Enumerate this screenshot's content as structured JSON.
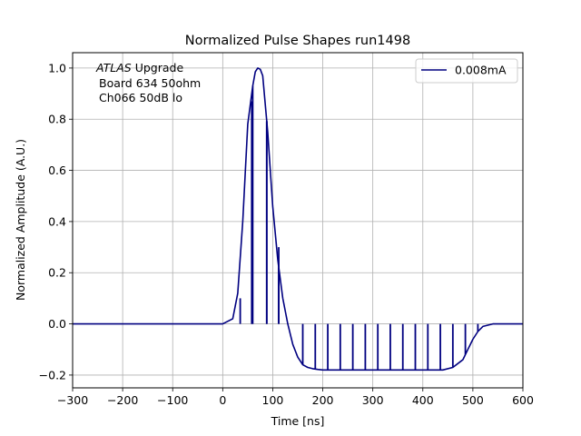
{
  "chart_data": {
    "type": "line",
    "title": "Normalized Pulse Shapes run1498",
    "xlabel": "Time [ns]",
    "ylabel": "Normalized Amplitude (A.U.)",
    "xlim": [
      -300,
      600
    ],
    "ylim": [
      -0.25,
      1.06
    ],
    "grid": true,
    "xticks": [
      -300,
      -200,
      -100,
      0,
      100,
      200,
      300,
      400,
      500,
      600
    ],
    "xtick_labels": [
      "−300",
      "−200",
      "−100",
      "0",
      "100",
      "200",
      "300",
      "400",
      "500",
      "600"
    ],
    "yticks": [
      -0.2,
      0.0,
      0.2,
      0.4,
      0.6,
      0.8,
      1.0
    ],
    "ytick_labels": [
      "−0.2",
      "0.0",
      "0.2",
      "0.4",
      "0.6",
      "0.8",
      "1.0"
    ],
    "annotation": {
      "italic": "ATLAS",
      "line1_rest": " Upgrade",
      "line2": "Board 634 50ohm",
      "line3": "Ch066 50dB lo"
    },
    "legend_position": "top-right",
    "series": [
      {
        "name": "0.008mA",
        "color": "#000080",
        "x": [
          -300,
          -200,
          -100,
          0,
          20,
          30,
          40,
          50,
          60,
          65,
          70,
          75,
          80,
          90,
          100,
          110,
          120,
          130,
          140,
          150,
          160,
          170,
          180,
          190,
          200,
          220,
          240,
          260,
          280,
          300,
          320,
          340,
          360,
          380,
          400,
          420,
          440,
          460,
          480,
          490,
          500,
          510,
          520,
          540,
          560,
          580,
          600
        ],
        "y": [
          0.0,
          0.0,
          0.0,
          0.0,
          0.02,
          0.12,
          0.4,
          0.78,
          0.93,
          0.985,
          1.0,
          0.995,
          0.97,
          0.75,
          0.46,
          0.25,
          0.1,
          0.0,
          -0.08,
          -0.13,
          -0.16,
          -0.17,
          -0.175,
          -0.178,
          -0.18,
          -0.18,
          -0.18,
          -0.18,
          -0.18,
          -0.18,
          -0.18,
          -0.18,
          -0.18,
          -0.18,
          -0.18,
          -0.18,
          -0.18,
          -0.17,
          -0.14,
          -0.1,
          -0.06,
          -0.03,
          -0.01,
          0.0,
          0.0,
          0.0,
          0.0
        ]
      }
    ],
    "spikes": [
      {
        "x": 35,
        "y": 0.1
      },
      {
        "x": 58,
        "y": 0.87
      },
      {
        "x": 88,
        "y": 0.79
      },
      {
        "x": 112,
        "y": 0.3
      }
    ],
    "dropouts": [
      60,
      88,
      112,
      160,
      185,
      210,
      235,
      260,
      285,
      310,
      335,
      360,
      385,
      410,
      435,
      460,
      485,
      510
    ]
  }
}
